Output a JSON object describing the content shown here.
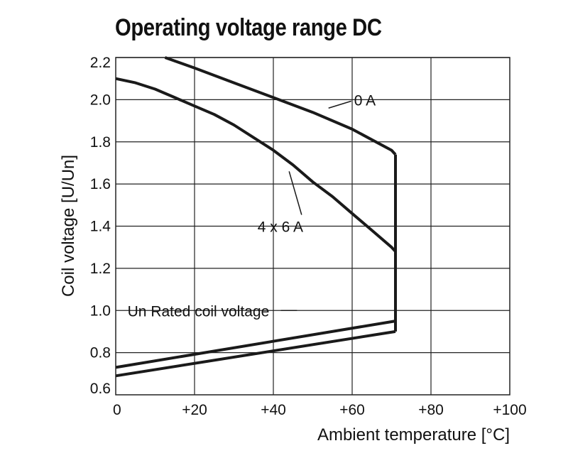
{
  "chart_data": {
    "type": "line",
    "title": "Operating voltage range DC",
    "xlabel": "Ambient temperature [°C]",
    "ylabel": "Coil voltage [U/Un]",
    "xlim": [
      0,
      100
    ],
    "ylim": [
      0.6,
      2.2
    ],
    "x_ticks": [
      0,
      20,
      40,
      60,
      80,
      100
    ],
    "x_tick_labels": [
      "0",
      "+20",
      "+40",
      "+60",
      "+80",
      "+100"
    ],
    "y_ticks": [
      0.6,
      0.8,
      1.0,
      1.2,
      1.4,
      1.6,
      1.8,
      2.0,
      2.2
    ],
    "y_tick_labels": [
      "0.6",
      "0.8",
      "1.0",
      "1.2",
      "1.4",
      "1.6",
      "1.8",
      "2.0",
      "2.2"
    ],
    "grid": true,
    "series": [
      {
        "name": "0 A",
        "x": [
          12.5,
          20,
          30,
          40,
          50,
          60,
          65,
          70,
          71
        ],
        "y": [
          2.2,
          2.15,
          2.08,
          2.01,
          1.94,
          1.86,
          1.81,
          1.76,
          1.74
        ]
      },
      {
        "name": "4 x 6 A",
        "x": [
          0,
          5,
          10,
          15,
          20,
          25,
          30,
          35,
          40,
          45,
          50,
          55,
          60,
          65,
          70,
          71
        ],
        "y": [
          2.1,
          2.08,
          2.05,
          2.01,
          1.97,
          1.93,
          1.88,
          1.82,
          1.76,
          1.69,
          1.61,
          1.54,
          1.46,
          1.38,
          1.3,
          1.28
        ]
      },
      {
        "name": "",
        "x": [
          0,
          71
        ],
        "y": [
          0.73,
          0.95
        ]
      },
      {
        "name": "",
        "x": [
          0,
          71
        ],
        "y": [
          0.69,
          0.9
        ]
      },
      {
        "name": "",
        "x": [
          71,
          71
        ],
        "y": [
          0.9,
          1.74
        ]
      }
    ],
    "annotations": [
      {
        "text": "0 A",
        "x": 60.5,
        "y": 2.0,
        "leader_to": [
          54,
          1.96
        ]
      },
      {
        "text": "4 x 6 A",
        "x": 36,
        "y": 1.4,
        "leader_to": [
          44,
          1.66
        ]
      },
      {
        "text": "Un Rated coil voltage",
        "x": 3,
        "y": 1.0,
        "leader_to": [
          46,
          1.0
        ]
      }
    ]
  }
}
